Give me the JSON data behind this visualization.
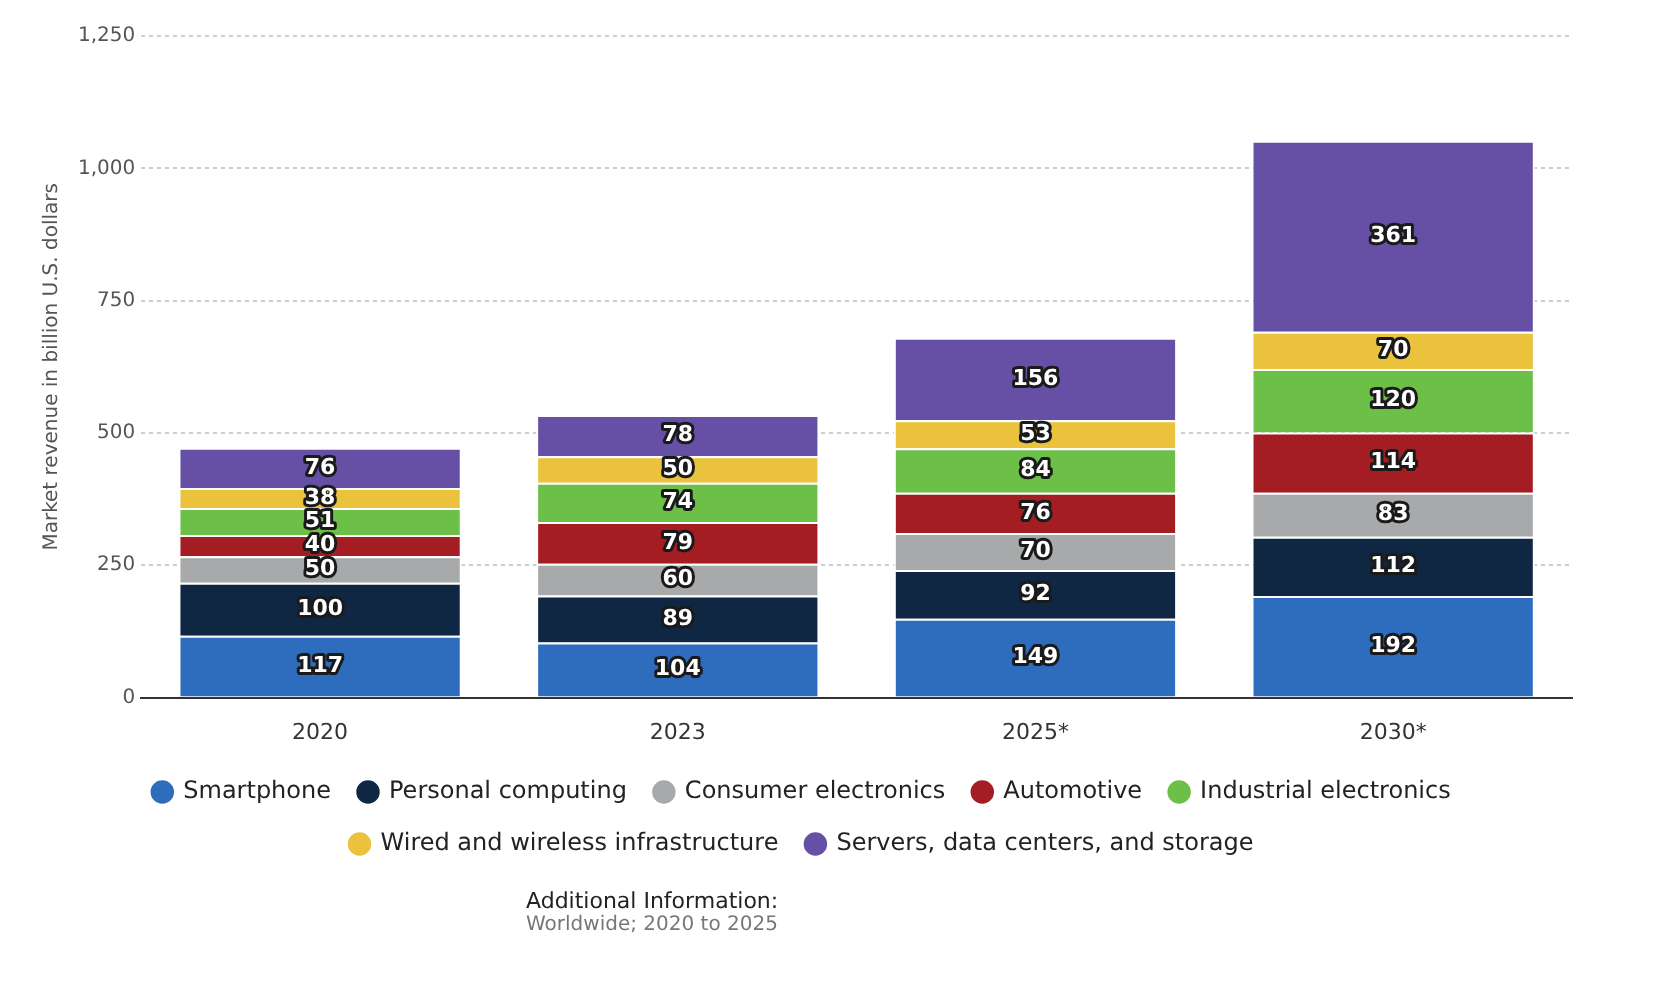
{
  "chart_data": {
    "type": "bar",
    "stacked": true,
    "ylabel": "Market revenue in billion U.S. dollars",
    "categories": [
      "2020",
      "2023",
      "2025*",
      "2030*"
    ],
    "series": [
      {
        "name": "Smartphone",
        "color": "#2e6dbd",
        "values": [
          117,
          104,
          149,
          192
        ]
      },
      {
        "name": "Personal computing",
        "color": "#0f2742",
        "values": [
          100,
          89,
          92,
          112
        ]
      },
      {
        "name": "Consumer electronics",
        "color": "#a8a9aa",
        "values": [
          50,
          60,
          70,
          83
        ]
      },
      {
        "name": "Automotive",
        "color": "#a31d23",
        "values": [
          40,
          79,
          76,
          114
        ]
      },
      {
        "name": "Industrial electronics",
        "color": "#6cbf47",
        "values": [
          51,
          74,
          84,
          120
        ]
      },
      {
        "name": "Wired and wireless infrastructure",
        "color": "#eac23b",
        "values": [
          38,
          50,
          53,
          70
        ]
      },
      {
        "name": "Servers, data centers, and storage",
        "color": "#6650a6",
        "values": [
          76,
          78,
          156,
          361
        ]
      }
    ],
    "ylim": [
      0,
      1250
    ],
    "yticks": [
      0,
      250,
      500,
      750,
      {
        "value": 1000,
        "label": "1,000"
      },
      {
        "value": 1250,
        "label": "1,250"
      }
    ],
    "grid": "y",
    "legend": "bottom",
    "data_labels": true,
    "annotations": [
      "Additional Information:",
      "Worldwide; 2020 to 2025"
    ]
  }
}
